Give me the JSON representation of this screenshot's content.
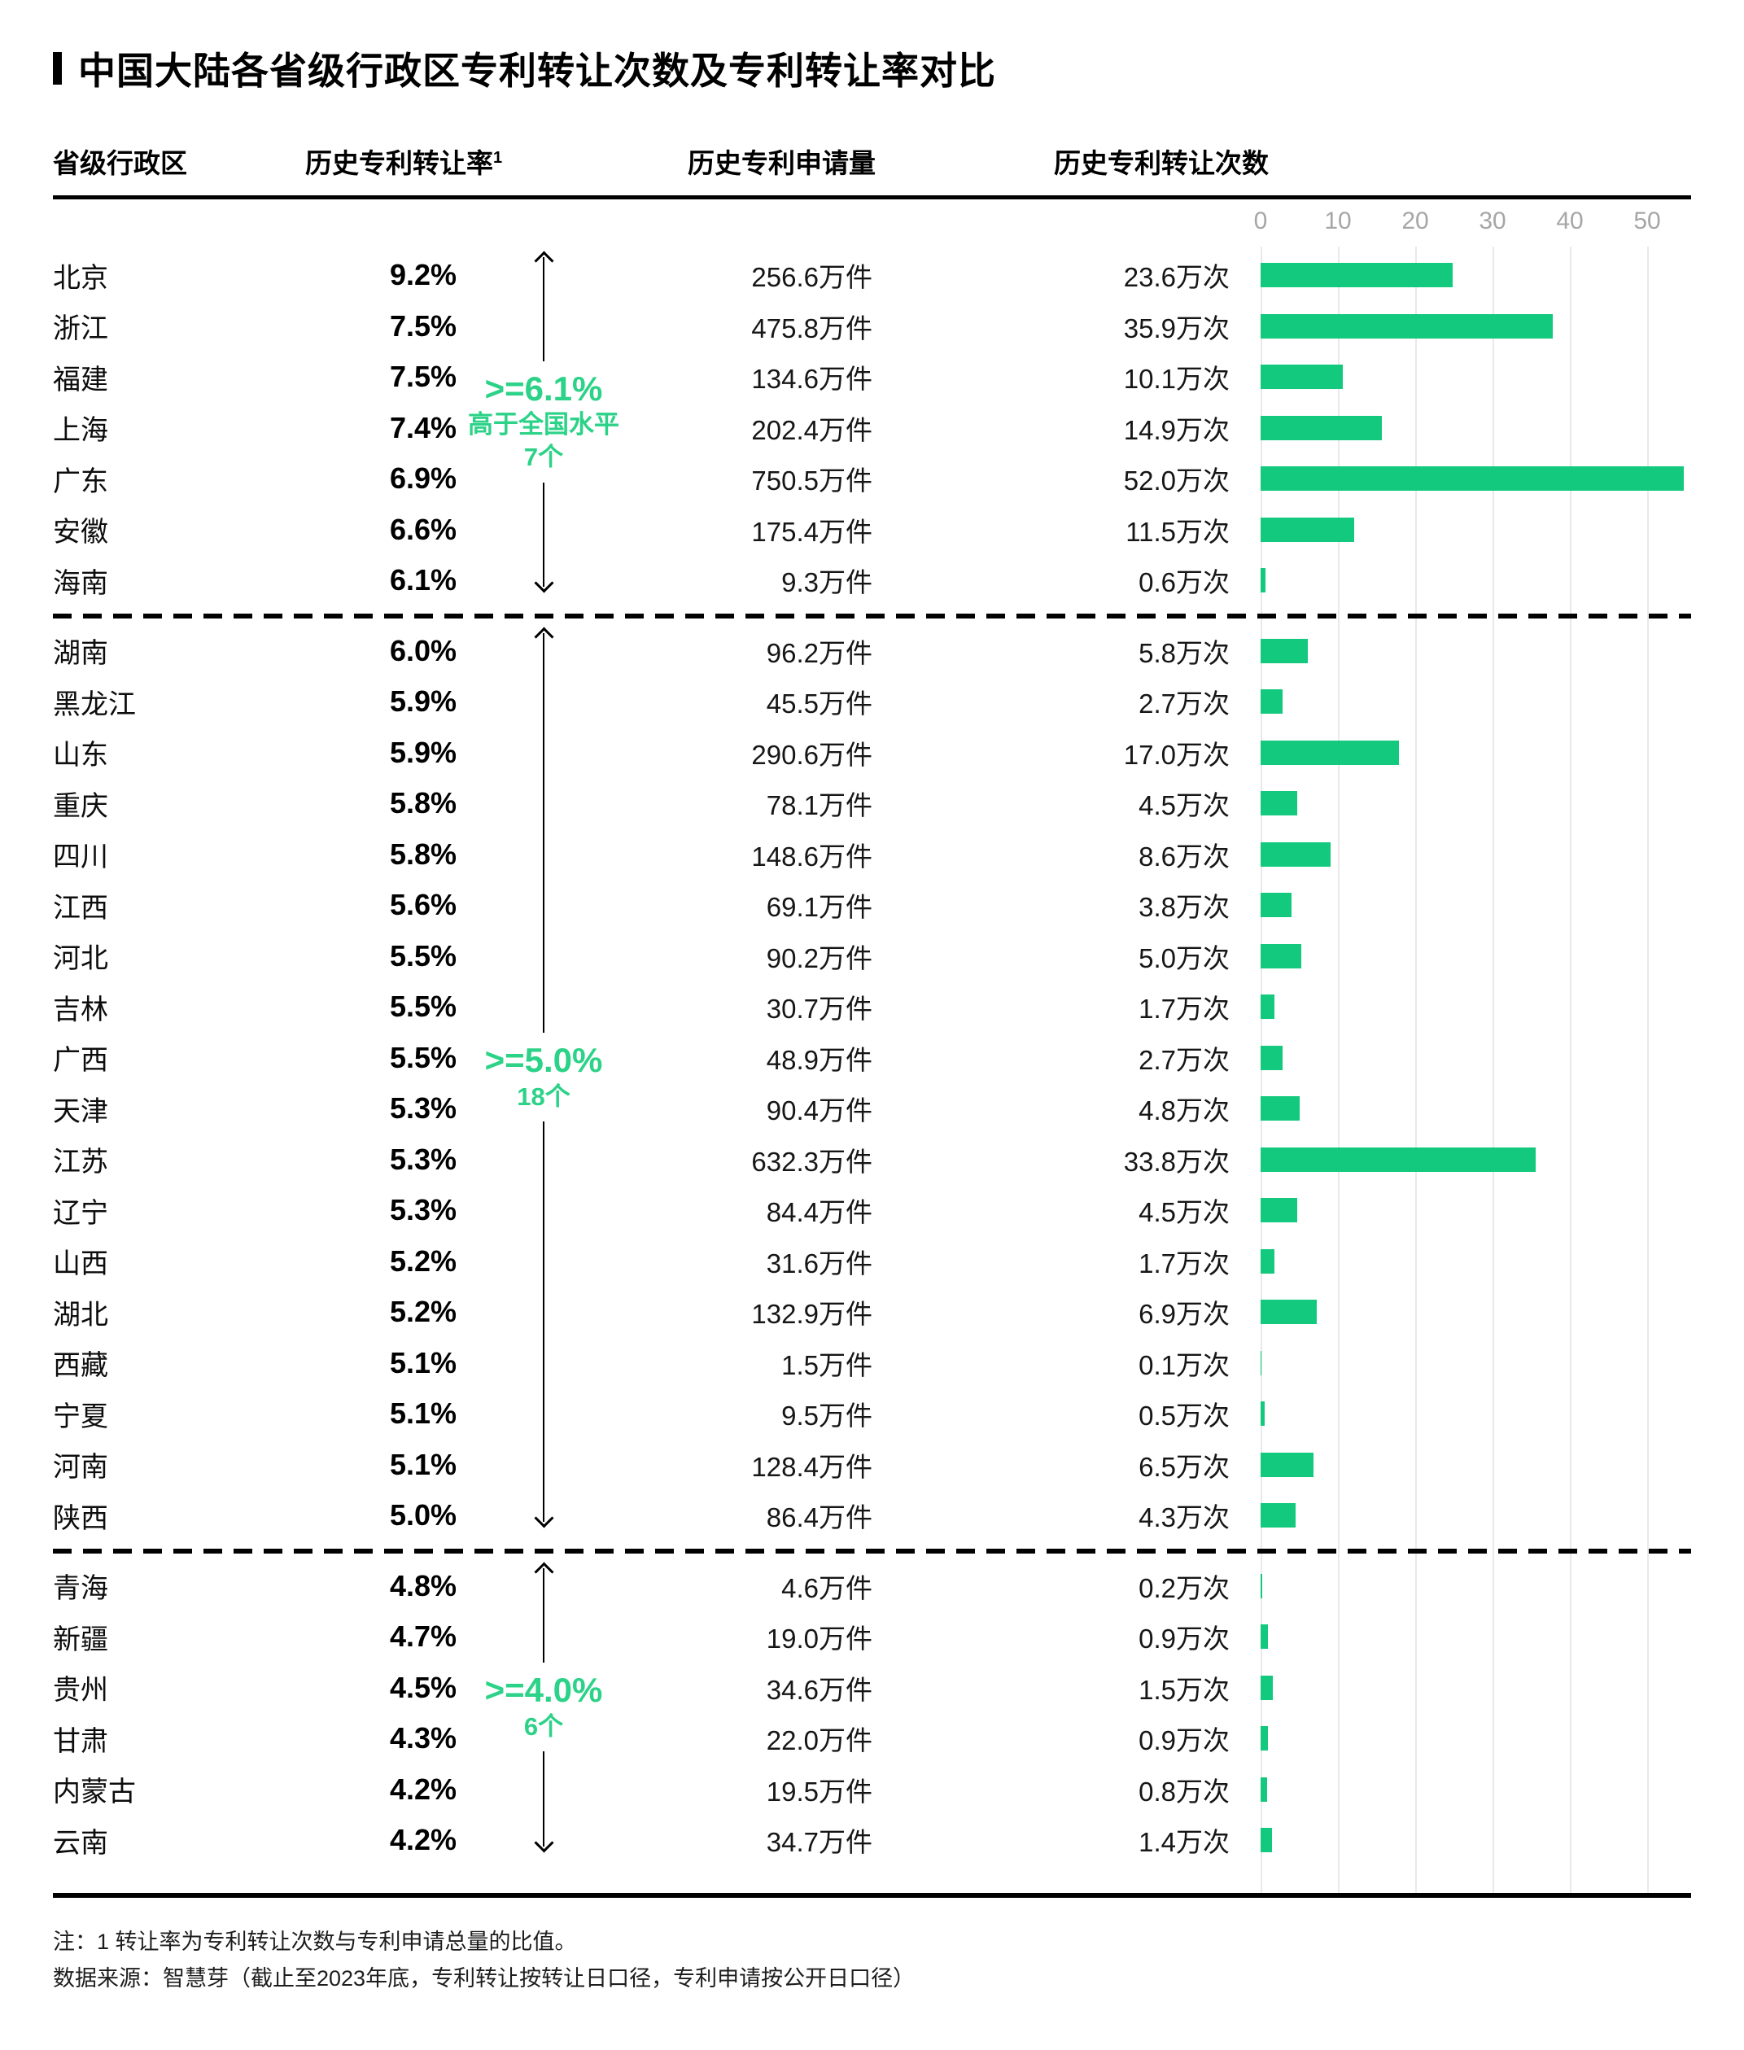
{
  "title": "中国大陆各省级行政区专利转让次数及专利转让率对比",
  "columns": {
    "province": "省级行政区",
    "rate": "历史专利转让率",
    "rate_sup": "1",
    "applications": "历史专利申请量",
    "transfers": "历史专利转让次数"
  },
  "chart_data": {
    "type": "bar",
    "title": "中国大陆各省级行政区专利转让次数及专利转让率对比",
    "xlabel": "历史专利转让次数 (万次)",
    "ylabel": "省级行政区",
    "axis_ticks": [
      0,
      10,
      20,
      30,
      40,
      50
    ],
    "xlim": [
      0,
      52
    ],
    "grid": "vertical",
    "bar_unit": "万次",
    "groups": [
      {
        "label_main": ">=6.1%",
        "label_sub": "高于全国水平",
        "label_count": "7个",
        "first_row": 0,
        "last_row": 6
      },
      {
        "label_main": ">=5.0%",
        "label_count": "18个",
        "first_row": 7,
        "last_row": 24
      },
      {
        "label_main": ">=4.0%",
        "label_count": "6个",
        "first_row": 25,
        "last_row": 30
      }
    ],
    "rows": [
      {
        "province": "北京",
        "rate": "9.2%",
        "applications": "256.6万件",
        "transfers": "23.6万次",
        "value": 23.6,
        "group": 0
      },
      {
        "province": "浙江",
        "rate": "7.5%",
        "applications": "475.8万件",
        "transfers": "35.9万次",
        "value": 35.9,
        "group": 0
      },
      {
        "province": "福建",
        "rate": "7.5%",
        "applications": "134.6万件",
        "transfers": "10.1万次",
        "value": 10.1,
        "group": 0
      },
      {
        "province": "上海",
        "rate": "7.4%",
        "applications": "202.4万件",
        "transfers": "14.9万次",
        "value": 14.9,
        "group": 0
      },
      {
        "province": "广东",
        "rate": "6.9%",
        "applications": "750.5万件",
        "transfers": "52.0万次",
        "value": 52.0,
        "group": 0
      },
      {
        "province": "安徽",
        "rate": "6.6%",
        "applications": "175.4万件",
        "transfers": "11.5万次",
        "value": 11.5,
        "group": 0
      },
      {
        "province": "海南",
        "rate": "6.1%",
        "applications": "9.3万件",
        "transfers": "0.6万次",
        "value": 0.6,
        "group": 0
      },
      {
        "province": "湖南",
        "rate": "6.0%",
        "applications": "96.2万件",
        "transfers": "5.8万次",
        "value": 5.8,
        "group": 1
      },
      {
        "province": "黑龙江",
        "rate": "5.9%",
        "applications": "45.5万件",
        "transfers": "2.7万次",
        "value": 2.7,
        "group": 1
      },
      {
        "province": "山东",
        "rate": "5.9%",
        "applications": "290.6万件",
        "transfers": "17.0万次",
        "value": 17.0,
        "group": 1
      },
      {
        "province": "重庆",
        "rate": "5.8%",
        "applications": "78.1万件",
        "transfers": "4.5万次",
        "value": 4.5,
        "group": 1
      },
      {
        "province": "四川",
        "rate": "5.8%",
        "applications": "148.6万件",
        "transfers": "8.6万次",
        "value": 8.6,
        "group": 1
      },
      {
        "province": "江西",
        "rate": "5.6%",
        "applications": "69.1万件",
        "transfers": "3.8万次",
        "value": 3.8,
        "group": 1
      },
      {
        "province": "河北",
        "rate": "5.5%",
        "applications": "90.2万件",
        "transfers": "5.0万次",
        "value": 5.0,
        "group": 1
      },
      {
        "province": "吉林",
        "rate": "5.5%",
        "applications": "30.7万件",
        "transfers": "1.7万次",
        "value": 1.7,
        "group": 1
      },
      {
        "province": "广西",
        "rate": "5.5%",
        "applications": "48.9万件",
        "transfers": "2.7万次",
        "value": 2.7,
        "group": 1
      },
      {
        "province": "天津",
        "rate": "5.3%",
        "applications": "90.4万件",
        "transfers": "4.8万次",
        "value": 4.8,
        "group": 1
      },
      {
        "province": "江苏",
        "rate": "5.3%",
        "applications": "632.3万件",
        "transfers": "33.8万次",
        "value": 33.8,
        "group": 1
      },
      {
        "province": "辽宁",
        "rate": "5.3%",
        "applications": "84.4万件",
        "transfers": "4.5万次",
        "value": 4.5,
        "group": 1
      },
      {
        "province": "山西",
        "rate": "5.2%",
        "applications": "31.6万件",
        "transfers": "1.7万次",
        "value": 1.7,
        "group": 1
      },
      {
        "province": "湖北",
        "rate": "5.2%",
        "applications": "132.9万件",
        "transfers": "6.9万次",
        "value": 6.9,
        "group": 1
      },
      {
        "province": "西藏",
        "rate": "5.1%",
        "applications": "1.5万件",
        "transfers": "0.1万次",
        "value": 0.1,
        "group": 1
      },
      {
        "province": "宁夏",
        "rate": "5.1%",
        "applications": "9.5万件",
        "transfers": "0.5万次",
        "value": 0.5,
        "group": 1
      },
      {
        "province": "河南",
        "rate": "5.1%",
        "applications": "128.4万件",
        "transfers": "6.5万次",
        "value": 6.5,
        "group": 1
      },
      {
        "province": "陕西",
        "rate": "5.0%",
        "applications": "86.4万件",
        "transfers": "4.3万次",
        "value": 4.3,
        "group": 1
      },
      {
        "province": "青海",
        "rate": "4.8%",
        "applications": "4.6万件",
        "transfers": "0.2万次",
        "value": 0.2,
        "group": 2
      },
      {
        "province": "新疆",
        "rate": "4.7%",
        "applications": "19.0万件",
        "transfers": "0.9万次",
        "value": 0.9,
        "group": 2
      },
      {
        "province": "贵州",
        "rate": "4.5%",
        "applications": "34.6万件",
        "transfers": "1.5万次",
        "value": 1.5,
        "group": 2
      },
      {
        "province": "甘肃",
        "rate": "4.3%",
        "applications": "22.0万件",
        "transfers": "0.9万次",
        "value": 0.9,
        "group": 2
      },
      {
        "province": "内蒙古",
        "rate": "4.2%",
        "applications": "19.5万件",
        "transfers": "0.8万次",
        "value": 0.8,
        "group": 2
      },
      {
        "province": "云南",
        "rate": "4.2%",
        "applications": "34.7万件",
        "transfers": "1.4万次",
        "value": 1.4,
        "group": 2
      }
    ]
  },
  "footnotes": [
    "注：1 转让率为专利转让次数与专利申请总量的比值。",
    "数据来源：智慧芽（截止至2023年底，专利转让按转让日口径，专利申请按公开日口径）"
  ],
  "colors": {
    "bar": "#12C97D",
    "annotation_green": "#2BD287",
    "tick_gray": "#A6A6A6",
    "gridline": "#E9E9E9"
  }
}
